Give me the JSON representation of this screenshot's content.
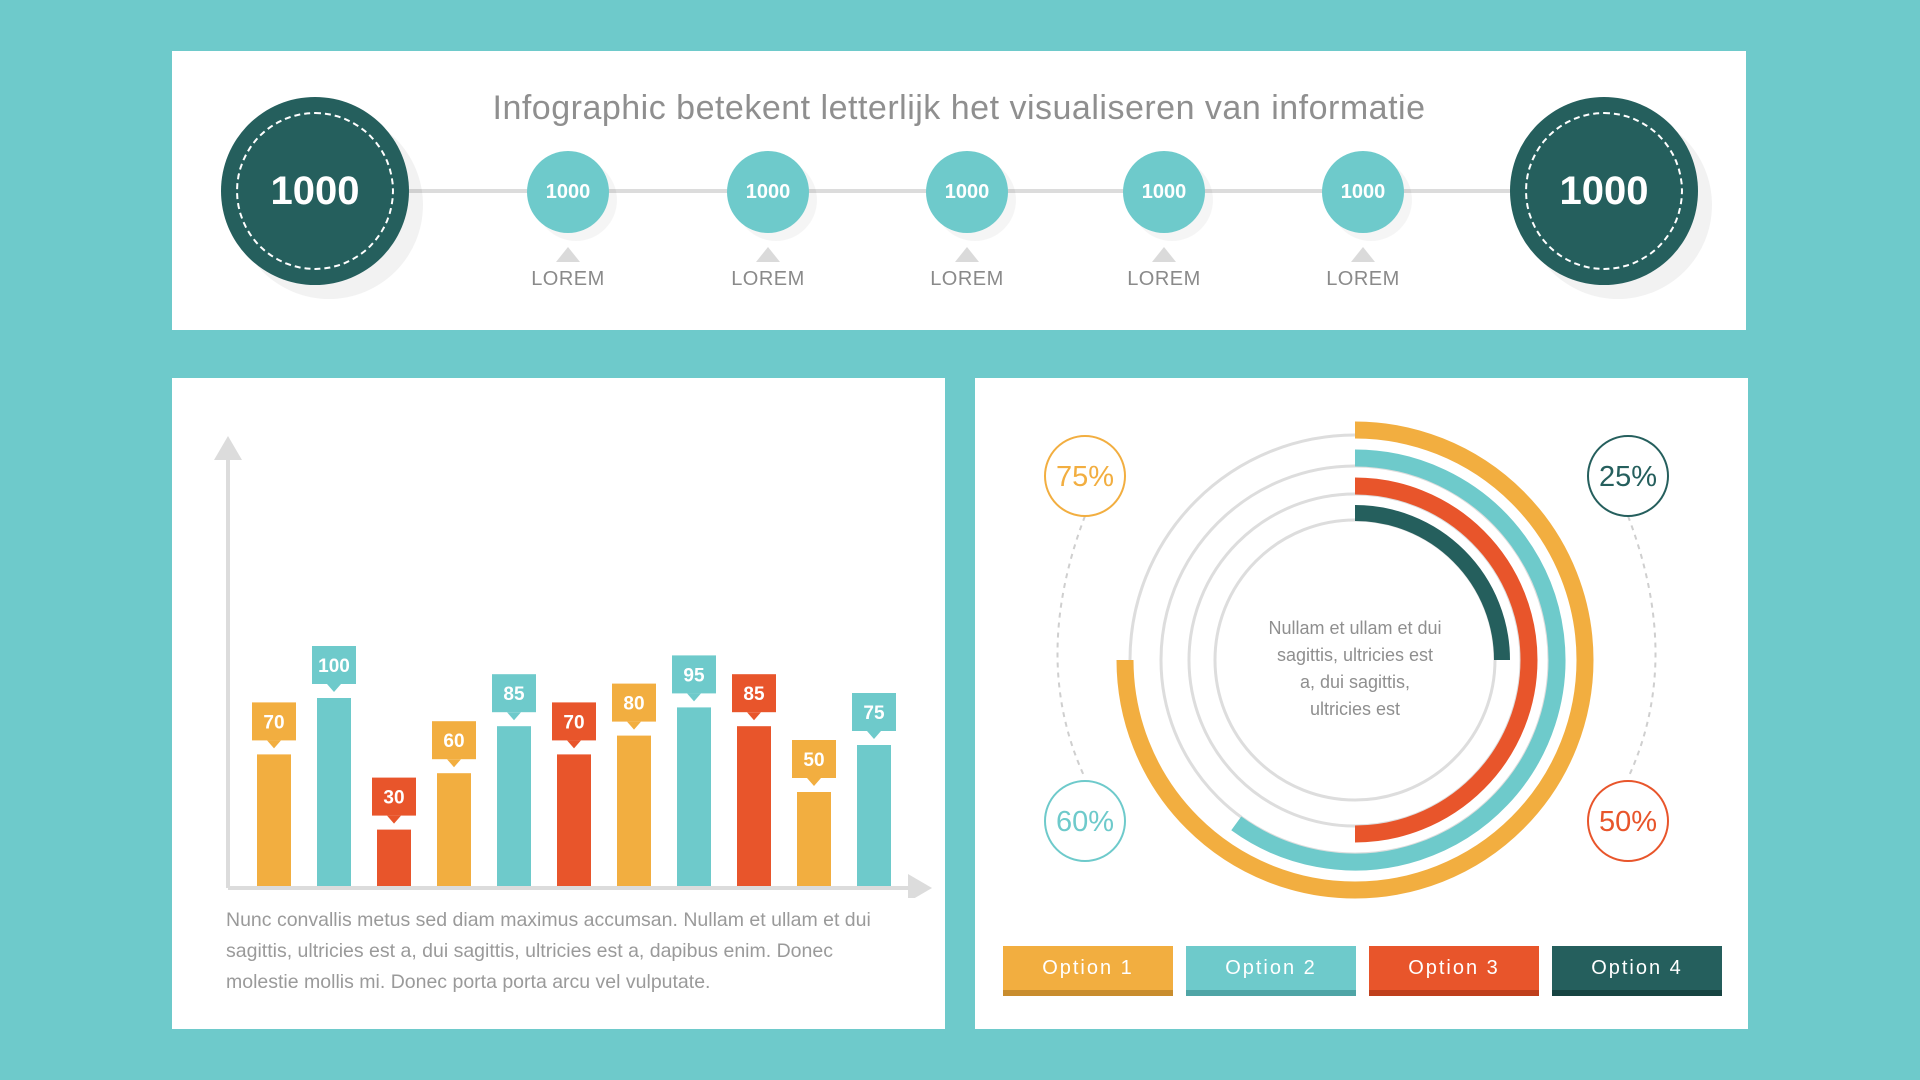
{
  "header": {
    "title": "Infographic betekent letterlijk het visualiseren van informatie",
    "left_value": "1000",
    "right_value": "1000",
    "steps": [
      {
        "value": "1000",
        "label": "LOREM"
      },
      {
        "value": "1000",
        "label": "LOREM"
      },
      {
        "value": "1000",
        "label": "LOREM"
      },
      {
        "value": "1000",
        "label": "LOREM"
      },
      {
        "value": "1000",
        "label": "LOREM"
      }
    ]
  },
  "colors": {
    "background": "#6ecacb",
    "orange": "#f2ae40",
    "teal": "#6ecacb",
    "red": "#e8552b",
    "dark_teal": "#255f5d",
    "text_gray": "#8f8f8f"
  },
  "chart_data": [
    {
      "type": "bar",
      "values": [
        70,
        100,
        30,
        60,
        85,
        70,
        80,
        95,
        85,
        50,
        75
      ],
      "bar_colors": [
        "#f2ae40",
        "#6ecacb",
        "#e8552b",
        "#f2ae40",
        "#6ecacb",
        "#e8552b",
        "#f2ae40",
        "#6ecacb",
        "#e8552b",
        "#f2ae40",
        "#6ecacb"
      ],
      "ylim": [
        0,
        130
      ],
      "description": "Nunc convallis metus sed diam maximus accumsan. Nullam et ullam et dui sagittis, ultricies est a, dui sagittis, ultricies est a, dapibus enim. Donec molestie mollis mi. Donec porta porta arcu vel vulputate."
    },
    {
      "type": "pie",
      "center_text": "Nullam et ullam et dui sagittis, ultricies est a, dui sagittis, ultricies est",
      "series": [
        {
          "name": "Option 1",
          "value": 75,
          "label": "75%",
          "color": "#f2ae40"
        },
        {
          "name": "Option 2",
          "value": 60,
          "label": "60%",
          "color": "#6ecacb"
        },
        {
          "name": "Option 3",
          "value": 50,
          "label": "50%",
          "color": "#e8552b"
        },
        {
          "name": "Option 4",
          "value": 25,
          "label": "25%",
          "color": "#255f5d"
        }
      ]
    }
  ]
}
